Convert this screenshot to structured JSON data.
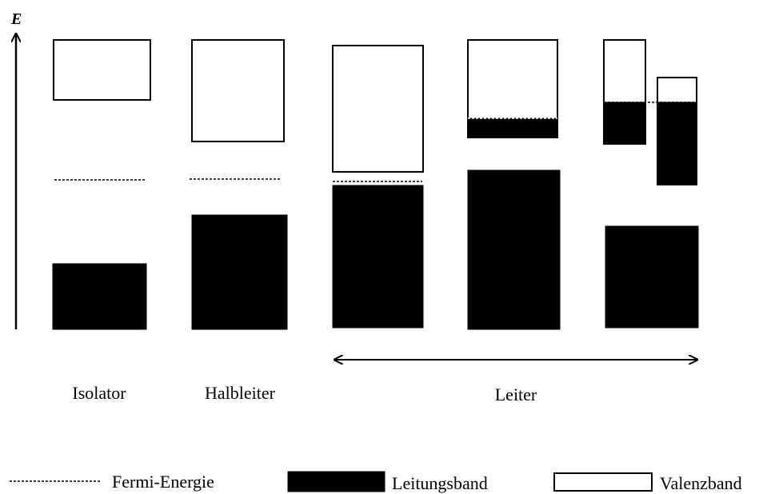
{
  "axis_label": "E",
  "categories": [
    "Isolator",
    "Halbleiter",
    "Leiter"
  ],
  "legend": [
    "Fermi-Energie",
    "Leitungsband",
    "Valenzband"
  ]
}
